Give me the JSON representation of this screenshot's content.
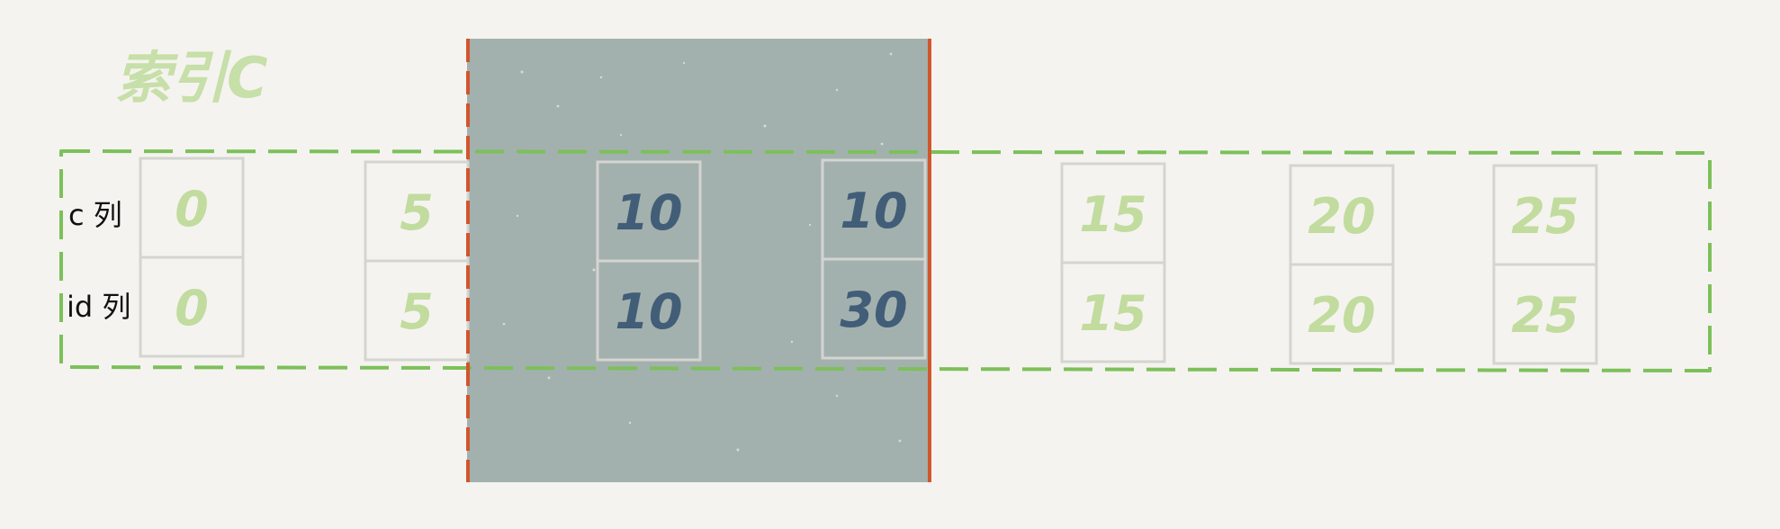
{
  "title": "索引C",
  "row_labels": {
    "c": "c 列",
    "id": "id 列"
  },
  "entries": [
    {
      "c": "0",
      "id": "0",
      "locked": false
    },
    {
      "c": "5",
      "id": "5",
      "locked": false
    },
    {
      "c": "10",
      "id": "10",
      "locked": true
    },
    {
      "c": "10",
      "id": "30",
      "locked": true
    },
    {
      "c": "15",
      "id": "15",
      "locked": false
    },
    {
      "c": "20",
      "id": "20",
      "locked": false
    },
    {
      "c": "25",
      "id": "25",
      "locked": false
    }
  ],
  "colors": {
    "background": "#f5f3ef",
    "lock_region": "#a3b1ae",
    "lock_edge": "#d2552c",
    "dash": "#7cc05a",
    "title": "#c7dfa8",
    "cell_border": "#d4d4d0",
    "value_light": "#c1dc9e",
    "value_dark": "#425d77",
    "label": "#111111"
  }
}
